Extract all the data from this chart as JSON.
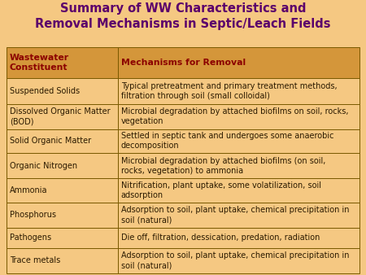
{
  "title_line1": "Summary of WW Characteristics and",
  "title_line2": "Removal Mechanisms in Septic/Leach Fields",
  "title_color": "#5B006B",
  "background_color": "#F5C882",
  "header_bg_color": "#D4963A",
  "cell_bg_color": "#F5C882",
  "border_color": "#7A5A00",
  "header_text_color": "#8B0000",
  "cell_text_color": "#2B1A00",
  "col_headers": [
    "Wastewater\nConstituent",
    "Mechanisms for Removal"
  ],
  "rows": [
    [
      "Suspended Solids",
      "Typical pretreatment and primary treatment methods,\nfiltration through soil (small colloidal)"
    ],
    [
      "Dissolved Organic Matter\n(BOD)",
      "Microbial degradation by attached biofilms on soil, rocks,\nvegetation"
    ],
    [
      "Solid Organic Matter",
      "Settled in septic tank and undergoes some anaerobic\ndecomposition"
    ],
    [
      "Organic Nitrogen",
      "Microbial degradation by attached biofilms (on soil,\nrocks, vegetation) to ammonia"
    ],
    [
      "Ammonia",
      "Nitrification, plant uptake, some volatilization, soil\nadsorption"
    ],
    [
      "Phosphorus",
      "Adsorption to soil, plant uptake, chemical precipitation in\nsoil (natural)"
    ],
    [
      "Pathogens",
      "Die off, filtration, dessication, predation, radiation"
    ],
    [
      "Trace metals",
      "Adsorption to soil, plant uptake, chemical precipitation in\nsoil (natural)"
    ]
  ],
  "title_fontsize": 10.5,
  "header_fontsize": 7.8,
  "cell_fontsize": 7.0,
  "fig_width": 4.5,
  "fig_height": 3.38,
  "dpi": 100
}
